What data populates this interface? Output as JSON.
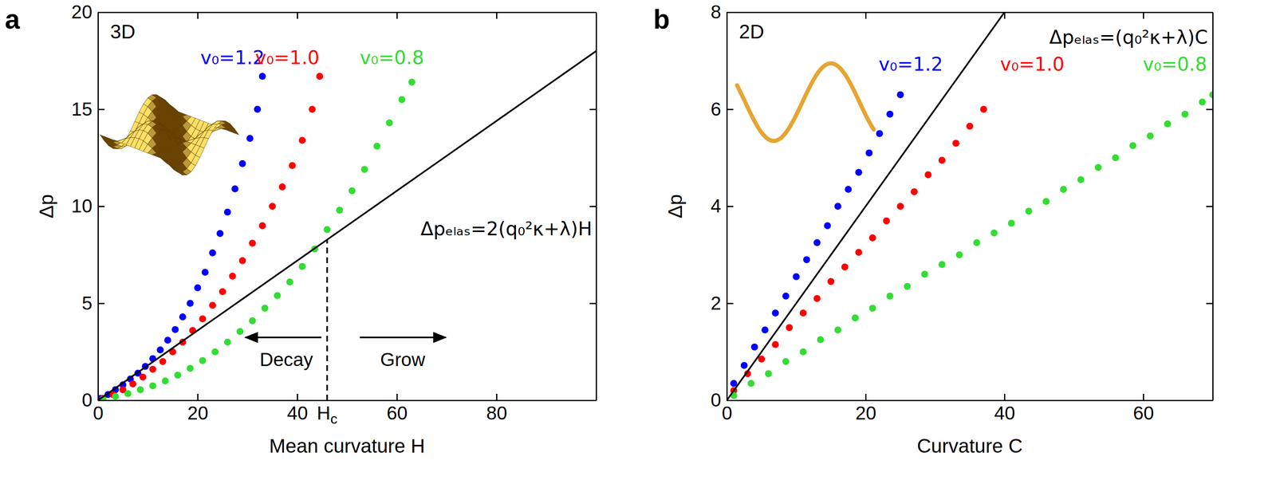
{
  "chart_data": [
    {
      "type": "scatter",
      "panel": "a",
      "title": "3D",
      "xlabel": "Mean curvature H",
      "ylabel": "Δp",
      "xlim": [
        0,
        100
      ],
      "xticks": [
        0,
        20,
        40,
        60,
        80
      ],
      "ylim": [
        0,
        20
      ],
      "yticks": [
        0,
        5,
        10,
        15,
        20
      ],
      "series": [
        {
          "name": "v₀=1.2",
          "color": "#0000ff",
          "marker": "circle",
          "x": [
            0.5,
            2,
            3.5,
            5,
            6.5,
            8,
            9.5,
            11,
            12.5,
            14,
            15.5,
            17,
            18.5,
            20,
            21.5,
            23,
            24.5,
            26,
            27.5,
            29,
            30.5,
            32,
            33
          ],
          "values": [
            0.1,
            0.3,
            0.55,
            0.8,
            1.1,
            1.4,
            1.75,
            2.15,
            2.6,
            3.1,
            3.65,
            4.3,
            5.0,
            5.8,
            6.6,
            7.6,
            8.6,
            9.7,
            10.9,
            12.2,
            13.5,
            15.0,
            16.7
          ]
        },
        {
          "name": "v₀=1.0",
          "color": "#ff0000",
          "marker": "circle",
          "x": [
            1,
            3,
            5,
            7,
            9,
            11,
            13,
            15,
            17,
            19,
            21,
            23,
            25,
            27,
            29,
            31,
            33,
            35,
            37,
            39,
            41,
            43,
            44.5
          ],
          "values": [
            0.1,
            0.3,
            0.55,
            0.85,
            1.2,
            1.6,
            2.0,
            2.5,
            3.0,
            3.6,
            4.2,
            4.9,
            5.6,
            6.4,
            7.2,
            8.1,
            9.0,
            10.0,
            11.0,
            12.1,
            13.4,
            15.0,
            16.7
          ]
        },
        {
          "name": "v₀=0.8",
          "color": "#33dd33",
          "marker": "circle",
          "x": [
            1,
            3.5,
            6,
            8.5,
            11,
            13.5,
            16,
            18.5,
            21,
            23.5,
            26,
            28.5,
            31,
            33.5,
            36,
            38.5,
            41,
            43.5,
            46,
            48.5,
            51,
            53.5,
            56,
            58.5,
            61,
            63
          ],
          "values": [
            0.05,
            0.2,
            0.35,
            0.55,
            0.75,
            1.0,
            1.3,
            1.65,
            2.05,
            2.5,
            3.0,
            3.55,
            4.1,
            4.75,
            5.4,
            6.1,
            6.9,
            7.8,
            8.8,
            9.8,
            10.8,
            11.9,
            13.1,
            14.3,
            15.5,
            16.4
          ]
        },
        {
          "name": "Δpₑₗₐₛ=2(q₀²κ+λ)H",
          "type": "line",
          "color": "#000000",
          "line_style": "solid",
          "x": [
            0,
            100
          ],
          "values": [
            0,
            18
          ]
        }
      ],
      "annotations": [
        {
          "text": "Hc",
          "x": 46,
          "line_style": "dashed"
        },
        {
          "text": "Decay"
        },
        {
          "text": "Grow"
        }
      ]
    },
    {
      "type": "scatter",
      "panel": "b",
      "title": "2D",
      "xlabel": "Curvature C",
      "ylabel": "Δp",
      "xlim": [
        0,
        70
      ],
      "xticks": [
        0,
        20,
        40,
        60
      ],
      "ylim": [
        0,
        8
      ],
      "yticks": [
        0,
        2,
        4,
        6,
        8
      ],
      "series": [
        {
          "name": "v₀=1.2",
          "color": "#0000ff",
          "marker": "circle",
          "x": [
            1,
            2.5,
            4,
            5.5,
            7,
            8.5,
            10,
            11.5,
            13,
            14.5,
            16,
            17.5,
            19,
            20.5,
            22,
            23.5,
            25
          ],
          "values": [
            0.35,
            0.72,
            1.1,
            1.45,
            1.8,
            2.15,
            2.55,
            2.9,
            3.25,
            3.6,
            4.0,
            4.35,
            4.7,
            5.1,
            5.5,
            5.9,
            6.3
          ]
        },
        {
          "name": "v₀=1.0",
          "color": "#ff0000",
          "marker": "circle",
          "x": [
            1,
            3,
            5,
            7,
            9,
            11,
            13,
            15,
            17,
            19,
            21,
            23,
            25,
            27,
            29,
            31,
            33,
            35,
            37
          ],
          "values": [
            0.2,
            0.55,
            0.85,
            1.15,
            1.5,
            1.8,
            2.1,
            2.45,
            2.75,
            3.05,
            3.35,
            3.7,
            4.0,
            4.3,
            4.65,
            4.95,
            5.3,
            5.65,
            6.0
          ]
        },
        {
          "name": "v₀=0.8",
          "color": "#33dd33",
          "marker": "circle",
          "x": [
            1,
            3.5,
            6,
            8.5,
            11,
            13.5,
            16,
            18.5,
            21,
            23.5,
            26,
            28.5,
            31,
            33.5,
            36,
            38.5,
            41,
            43.5,
            46,
            48.5,
            51,
            53.5,
            56,
            58.5,
            61,
            63.5,
            66,
            68.5,
            70
          ],
          "values": [
            0.1,
            0.35,
            0.55,
            0.8,
            1.0,
            1.25,
            1.45,
            1.7,
            1.9,
            2.15,
            2.35,
            2.6,
            2.8,
            3.0,
            3.25,
            3.45,
            3.65,
            3.9,
            4.1,
            4.35,
            4.55,
            4.8,
            5.0,
            5.25,
            5.45,
            5.7,
            5.9,
            6.15,
            6.3
          ]
        },
        {
          "name": "Δpₑₗₐₛ=(q₀²κ+λ)C",
          "type": "line",
          "color": "#000000",
          "line_style": "solid",
          "x": [
            0,
            40
          ],
          "values": [
            0,
            8
          ]
        }
      ]
    }
  ]
}
